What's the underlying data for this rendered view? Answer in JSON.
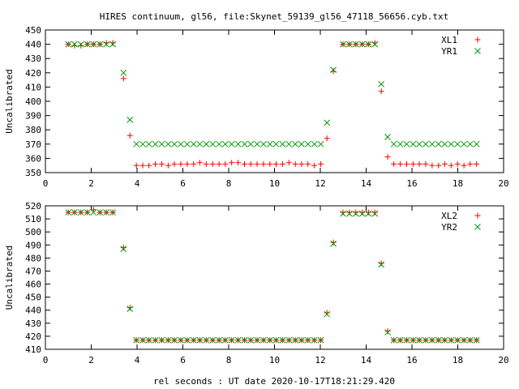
{
  "title": "HIRES continuum, gl56, file:Skynet_59139_gl56_47118_56656.cyb.txt",
  "xlabel": "rel seconds : UT date 2020-10-17T18:21:29.420",
  "colors": {
    "red": "#ff0000",
    "green": "#009900"
  },
  "chart_data": [
    {
      "type": "scatter",
      "ylabel": "Uncalibrated",
      "xlim": [
        0,
        20
      ],
      "ylim": [
        350,
        450
      ],
      "xticks": [
        0,
        2,
        4,
        6,
        8,
        10,
        12,
        14,
        16,
        18,
        20
      ],
      "yticks": [
        350,
        360,
        370,
        380,
        390,
        400,
        410,
        420,
        430,
        440,
        450
      ],
      "grid": false,
      "legend": "top-right",
      "series": [
        {
          "name": "XL1",
          "marker": "plus",
          "color": "#ff0000",
          "x": [
            1.0,
            1.27,
            1.55,
            1.83,
            2.1,
            2.38,
            2.66,
            2.94,
            3.41,
            3.69,
            3.97,
            4.25,
            4.52,
            4.8,
            5.08,
            5.36,
            5.63,
            5.91,
            6.19,
            6.47,
            6.74,
            7.02,
            7.3,
            7.58,
            7.85,
            8.13,
            8.41,
            8.69,
            8.96,
            9.24,
            9.52,
            9.8,
            10.07,
            10.35,
            10.63,
            10.91,
            11.18,
            11.46,
            11.74,
            12.02,
            12.29,
            12.57,
            12.99,
            13.27,
            13.55,
            13.83,
            14.1,
            14.38,
            14.66,
            14.94,
            15.21,
            15.49,
            15.77,
            16.05,
            16.32,
            16.6,
            16.88,
            17.16,
            17.43,
            17.71,
            17.99,
            18.27,
            18.54,
            18.82
          ],
          "y": [
            440,
            439,
            439,
            440,
            440,
            440,
            441,
            441,
            416,
            376,
            355,
            355,
            355,
            356,
            356,
            355,
            356,
            356,
            356,
            356,
            357,
            356,
            356,
            356,
            356,
            357,
            357,
            356,
            356,
            356,
            356,
            356,
            356,
            356,
            357,
            356,
            356,
            356,
            355,
            356,
            374,
            421,
            440,
            440,
            440,
            440,
            440,
            441,
            407,
            361,
            356,
            356,
            356,
            356,
            356,
            356,
            355,
            355,
            356,
            355,
            356,
            355,
            356,
            356
          ]
        },
        {
          "name": "YR1",
          "marker": "cross",
          "color": "#009900",
          "x": [
            1.0,
            1.27,
            1.55,
            1.83,
            2.1,
            2.38,
            2.66,
            2.94,
            3.41,
            3.69,
            3.97,
            4.25,
            4.52,
            4.8,
            5.08,
            5.36,
            5.63,
            5.91,
            6.19,
            6.47,
            6.74,
            7.02,
            7.3,
            7.58,
            7.85,
            8.13,
            8.41,
            8.69,
            8.96,
            9.24,
            9.52,
            9.8,
            10.07,
            10.35,
            10.63,
            10.91,
            11.18,
            11.46,
            11.74,
            12.02,
            12.29,
            12.57,
            12.99,
            13.27,
            13.55,
            13.83,
            14.1,
            14.38,
            14.66,
            14.94,
            15.21,
            15.49,
            15.77,
            16.05,
            16.32,
            16.6,
            16.88,
            17.16,
            17.43,
            17.71,
            17.99,
            18.27,
            18.54,
            18.82
          ],
          "y": [
            440,
            440,
            440,
            440,
            440,
            440,
            440,
            440,
            420,
            387,
            370,
            370,
            370,
            370,
            370,
            370,
            370,
            370,
            370,
            370,
            370,
            370,
            370,
            370,
            370,
            370,
            370,
            370,
            370,
            370,
            370,
            370,
            370,
            370,
            370,
            370,
            370,
            370,
            370,
            370,
            385,
            422,
            440,
            440,
            440,
            440,
            440,
            440,
            412,
            375,
            370,
            370,
            370,
            370,
            370,
            370,
            370,
            370,
            370,
            370,
            370,
            370,
            370,
            370
          ]
        }
      ]
    },
    {
      "type": "scatter",
      "ylabel": "Uncalibrated",
      "xlim": [
        0,
        20
      ],
      "ylim": [
        410,
        520
      ],
      "xticks": [
        0,
        2,
        4,
        6,
        8,
        10,
        12,
        14,
        16,
        18,
        20
      ],
      "yticks": [
        410,
        420,
        430,
        440,
        450,
        460,
        470,
        480,
        490,
        500,
        510,
        520
      ],
      "grid": false,
      "legend": "top-right",
      "series": [
        {
          "name": "XL2",
          "marker": "plus",
          "color": "#ff0000",
          "x": [
            1.0,
            1.27,
            1.55,
            1.83,
            2.1,
            2.38,
            2.66,
            2.94,
            3.41,
            3.69,
            3.97,
            4.25,
            4.52,
            4.8,
            5.08,
            5.36,
            5.63,
            5.91,
            6.19,
            6.47,
            6.74,
            7.02,
            7.3,
            7.58,
            7.85,
            8.13,
            8.41,
            8.69,
            8.96,
            9.24,
            9.52,
            9.8,
            10.07,
            10.35,
            10.63,
            10.91,
            11.18,
            11.46,
            11.74,
            12.02,
            12.29,
            12.57,
            12.99,
            13.27,
            13.55,
            13.83,
            14.1,
            14.38,
            14.66,
            14.94,
            15.21,
            15.49,
            15.77,
            16.05,
            16.32,
            16.6,
            16.88,
            17.16,
            17.43,
            17.71,
            17.99,
            18.27,
            18.54,
            18.82
          ],
          "y": [
            515,
            515,
            515,
            515,
            517,
            515,
            515,
            515,
            488,
            442,
            417,
            417,
            417,
            417,
            417,
            417,
            417,
            417,
            417,
            417,
            417,
            417,
            417,
            417,
            417,
            417,
            417,
            417,
            417,
            417,
            417,
            417,
            417,
            417,
            417,
            417,
            417,
            417,
            417,
            417,
            438,
            492,
            515,
            515,
            515,
            515,
            515,
            515,
            476,
            424,
            417,
            417,
            417,
            417,
            417,
            417,
            417,
            417,
            417,
            417,
            417,
            417,
            417,
            417
          ]
        },
        {
          "name": "YR2",
          "marker": "cross",
          "color": "#009900",
          "x": [
            1.0,
            1.27,
            1.55,
            1.83,
            2.1,
            2.38,
            2.66,
            2.94,
            3.41,
            3.69,
            3.97,
            4.25,
            4.52,
            4.8,
            5.08,
            5.36,
            5.63,
            5.91,
            6.19,
            6.47,
            6.74,
            7.02,
            7.3,
            7.58,
            7.85,
            8.13,
            8.41,
            8.69,
            8.96,
            9.24,
            9.52,
            9.8,
            10.07,
            10.35,
            10.63,
            10.91,
            11.18,
            11.46,
            11.74,
            12.02,
            12.29,
            12.57,
            12.99,
            13.27,
            13.55,
            13.83,
            14.1,
            14.38,
            14.66,
            14.94,
            15.21,
            15.49,
            15.77,
            16.05,
            16.32,
            16.6,
            16.88,
            17.16,
            17.43,
            17.71,
            17.99,
            18.27,
            18.54,
            18.82
          ],
          "y": [
            515,
            515,
            515,
            515,
            515,
            515,
            515,
            515,
            487,
            441,
            417,
            417,
            417,
            417,
            417,
            417,
            417,
            417,
            417,
            417,
            417,
            417,
            417,
            417,
            417,
            417,
            417,
            417,
            417,
            417,
            417,
            417,
            417,
            417,
            417,
            417,
            417,
            417,
            417,
            417,
            437,
            491,
            514,
            514,
            514,
            514,
            514,
            514,
            475,
            423,
            417,
            417,
            417,
            417,
            417,
            417,
            417,
            417,
            417,
            417,
            417,
            417,
            417,
            417
          ]
        }
      ]
    }
  ]
}
